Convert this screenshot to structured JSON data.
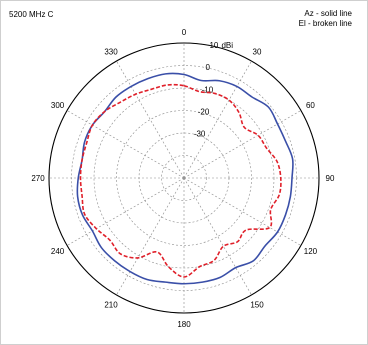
{
  "chart_data": {
    "type": "polar-line",
    "title": "5200 MHz C",
    "radial_unit": "dBi",
    "rlim": [
      -50,
      10
    ],
    "radial_ticks": [
      -40,
      -30,
      -20,
      -10,
      0,
      10
    ],
    "radial_tick_labels": [
      "",
      "-30",
      "-20",
      "-10",
      "0",
      "10"
    ],
    "angle_ticks": [
      0,
      30,
      60,
      90,
      120,
      150,
      180,
      210,
      240,
      270,
      300,
      330
    ],
    "angle_direction": "clockwise",
    "zero_location": "top",
    "grid": true,
    "legend": [
      "Az - solid line",
      "El - broken line"
    ],
    "series": [
      {
        "style": "solid",
        "color": "#3a4fa8",
        "angles": [
          0,
          10,
          20,
          30,
          40,
          50,
          60,
          70,
          80,
          90,
          100,
          110,
          120,
          130,
          140,
          150,
          160,
          170,
          180,
          190,
          200,
          210,
          220,
          230,
          240,
          250,
          260,
          270,
          280,
          290,
          300,
          310,
          320,
          330,
          340,
          350
        ],
        "values": [
          -4,
          -6,
          -4,
          -3,
          -3,
          -1,
          -2,
          -2,
          -1,
          -2,
          -2,
          -2,
          -2,
          -3,
          -2,
          -4,
          -3,
          -3,
          -3,
          -3,
          -2,
          -2,
          -2,
          -2,
          -3,
          -2,
          -2,
          -3,
          -4,
          -3,
          -3,
          -4,
          -3,
          -3,
          -3,
          -3
        ]
      },
      {
        "style": "dashed",
        "color": "#e0202a",
        "angles": [
          0,
          10,
          20,
          30,
          40,
          50,
          60,
          70,
          80,
          90,
          100,
          110,
          120,
          130,
          140,
          150,
          160,
          170,
          180,
          190,
          200,
          210,
          220,
          230,
          240,
          250,
          260,
          270,
          280,
          290,
          300,
          310,
          320,
          330,
          340,
          350
        ],
        "values": [
          -9,
          -11,
          -10,
          -10,
          -12,
          -15,
          -12,
          -11,
          -8,
          -7,
          -7,
          -9,
          -6,
          -14,
          -13,
          -15,
          -11,
          -10,
          -6,
          -10,
          -15,
          -9,
          -6,
          -7,
          -5,
          -3,
          -4,
          -4,
          -4,
          -4,
          -3,
          -4,
          -6,
          -7,
          -8,
          -8
        ]
      }
    ]
  }
}
